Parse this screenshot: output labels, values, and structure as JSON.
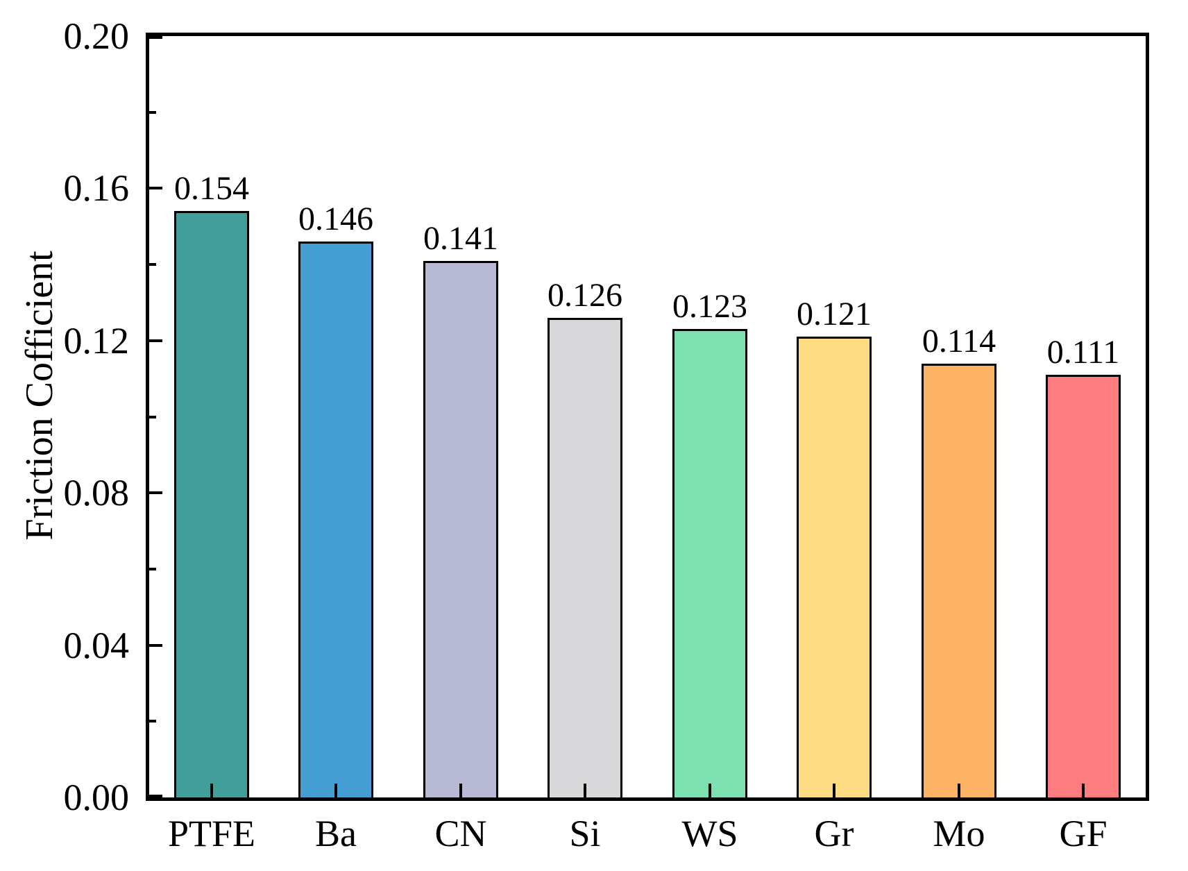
{
  "chart_data": {
    "type": "bar",
    "title": "",
    "xlabel": "",
    "ylabel": "Friction Cofficient",
    "categories": [
      "PTFE",
      "Ba",
      "CN",
      "Si",
      "WS",
      "Gr",
      "Mo",
      "GF"
    ],
    "values": [
      0.154,
      0.146,
      0.141,
      0.126,
      0.123,
      0.121,
      0.114,
      0.111
    ],
    "value_labels": [
      "0.154",
      "0.146",
      "0.141",
      "0.126",
      "0.123",
      "0.121",
      "0.114",
      "0.111"
    ],
    "bar_colors": [
      "#419e98",
      "#449dd3",
      "#b8b9d4",
      "#d8d8da",
      "#7ce0b0",
      "#fddc84",
      "#fcb366",
      "#fc7c80"
    ],
    "bar_edge_color": "#000000",
    "background_color": "#ffffff",
    "axis_color": "#000000",
    "ylim": [
      0,
      0.2
    ],
    "y_major_ticks": [
      0.0,
      0.04,
      0.08,
      0.12,
      0.16,
      0.2
    ],
    "y_major_tick_labels": [
      "0.00",
      "0.04",
      "0.08",
      "0.12",
      "0.16",
      "0.20"
    ],
    "y_minor_ticks": [
      0.02,
      0.06,
      0.1,
      0.14,
      0.18
    ],
    "bar_width_fraction": 0.6,
    "tick_direction": "in",
    "grid": false,
    "legend_position": "none"
  }
}
